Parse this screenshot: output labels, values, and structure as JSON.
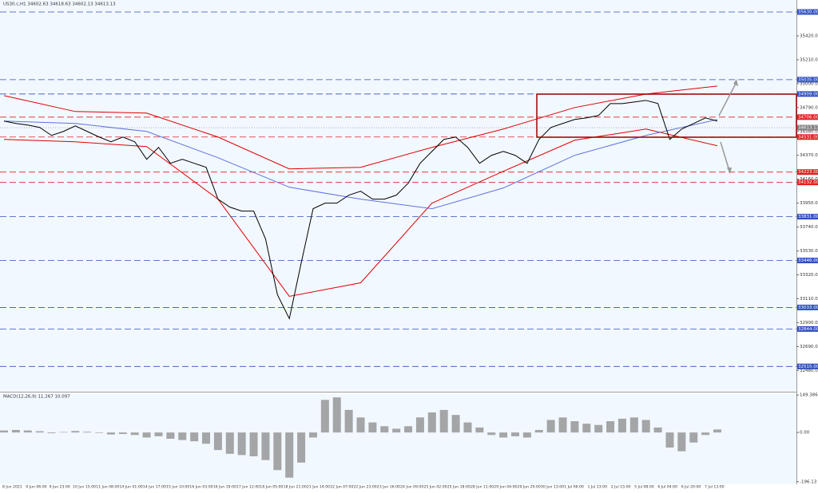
{
  "chart_data": {
    "type": "line",
    "title": "US30.c,H1  34602.63 34618.63 34602.13 34613.13",
    "subtitle": "MACD(12,26,9) 11.267 10.097",
    "time_labels": [
      "8 Jun 2021",
      "9 Jun 06:00",
      "9 Jun 23:00",
      "10 Jun 15:00",
      "11 Jun 08:00",
      "14 Jun 01:00",
      "14 Jun 17:00",
      "15 Jun 10:00",
      "16 Jun 03:00",
      "16 Jun 19:00",
      "17 Jun 12:00",
      "18 Jun 05:00",
      "18 Jun 21:00",
      "21 Jun 14:00",
      "22 Jun 07:00",
      "22 Jun 23:00",
      "23 Jun 16:00",
      "24 Jun 09:00",
      "25 Jun 02:00",
      "25 Jun 18:00",
      "28 Jun 11:00",
      "29 Jun 04:00",
      "29 Jun 20:00",
      "30 Jun 13:00",
      "1 Jul 06:00",
      "1 Jul 23:00",
      "2 Jul 15:00",
      "5 Jul 08:00",
      "6 Jul 04:00",
      "6 Jul 20:00",
      "7 Jul 13:00"
    ],
    "ylim": [
      32300,
      35700
    ],
    "yticks": [
      {
        "value": 35420,
        "label": "35420.00"
      },
      {
        "value": 35210,
        "label": "35210.00"
      },
      {
        "value": 35000,
        "label": "35000.00"
      },
      {
        "value": 34790,
        "label": "34790.00"
      },
      {
        "value": 34580,
        "label": "34580.00"
      },
      {
        "value": 34370,
        "label": "34370.00"
      },
      {
        "value": 34160,
        "label": "34160.00"
      },
      {
        "value": 33950,
        "label": "33950.00"
      },
      {
        "value": 33740,
        "label": "33740.00"
      },
      {
        "value": 33530,
        "label": "33530.00"
      },
      {
        "value": 33320,
        "label": "33320.00"
      },
      {
        "value": 33110,
        "label": "33110.00"
      },
      {
        "value": 32900,
        "label": "32900.00"
      },
      {
        "value": 32690,
        "label": "32690.00"
      },
      {
        "value": 32480,
        "label": "32480.00"
      }
    ],
    "series": [
      {
        "color": "#000000",
        "values": [
          34671,
          34650,
          34636,
          34615,
          34545,
          34580,
          34629,
          34580,
          34531,
          34489,
          34531,
          34489,
          34335,
          34440,
          34300,
          34335,
          34300,
          34265,
          33985,
          33915,
          33880,
          33880,
          33635,
          33145,
          32935,
          33425,
          33901,
          33950,
          33950,
          34020,
          34055,
          33985,
          33985,
          34020,
          34125,
          34300,
          34405,
          34510,
          34531,
          34440,
          34300,
          34370,
          34405,
          34370,
          34300,
          34510,
          34615,
          34650,
          34685,
          34699,
          34720,
          34825,
          34825,
          34839,
          34853,
          34825,
          34510,
          34601,
          34650,
          34699,
          34671
        ]
      }
    ],
    "overlays": [
      {
        "color": "#e00000",
        "x": [
          0,
          6,
          12,
          18,
          24,
          30,
          36,
          42,
          48,
          54,
          60
        ],
        "values": [
          34895,
          34755,
          34741,
          34531,
          34251,
          34265,
          34440,
          34601,
          34790,
          34909,
          34979
        ]
      },
      {
        "color": "#e00000",
        "x": [
          0,
          6,
          12,
          18,
          24,
          30,
          36,
          42,
          48,
          54,
          60
        ],
        "values": [
          34510,
          34489,
          34447,
          33985,
          33131,
          33250,
          33950,
          34230,
          34503,
          34601,
          34454
        ]
      },
      {
        "color": "#6070e0",
        "x": [
          0,
          6,
          12,
          18,
          24,
          30,
          36,
          42,
          48,
          54,
          60
        ],
        "values": [
          34671,
          34650,
          34580,
          34349,
          34090,
          33985,
          33901,
          34083,
          34370,
          34545,
          34685
        ]
      }
    ],
    "levels": [
      {
        "value": 35630,
        "label": "35630.00",
        "color": "#3050c0"
      },
      {
        "value": 35035,
        "label": "35035.00",
        "color": "#3050c0"
      },
      {
        "value": 34909,
        "label": "34909.00",
        "color": "#3050c0"
      },
      {
        "value": 34706,
        "label": "34706.00",
        "color": "#e02020"
      },
      {
        "value": 34531,
        "label": "34531.00",
        "color": "#e02020"
      },
      {
        "value": 34223,
        "label": "34223.00",
        "color": "#e02020"
      },
      {
        "value": 34132,
        "label": "34132.00",
        "color": "#e02020"
      },
      {
        "value": 33831,
        "label": "33831.00",
        "color": "#3050c0"
      },
      {
        "value": 33446,
        "label": "33446.00",
        "color": "#3050c0"
      },
      {
        "value": 33033,
        "label": "33033.00",
        "color": "#3050c0"
      },
      {
        "value": 32844,
        "label": "32844.00",
        "color": "#3050c0"
      },
      {
        "value": 32515,
        "label": "32515.00",
        "color": "#3050c0"
      }
    ],
    "current_price": {
      "value": 34613.13,
      "label": "34613.13",
      "color": "#808080"
    },
    "macd": {
      "color": "#909090",
      "ylim": [
        -200,
        150
      ],
      "yticks": [
        {
          "value": 149.386,
          "label": "149.386"
        },
        {
          "value": 0,
          "label": "0.00"
        },
        {
          "value": -196.13,
          "label": "-196.13"
        }
      ],
      "values": [
        8,
        10,
        8,
        5,
        -3,
        2,
        6,
        3,
        -2,
        -8,
        -6,
        -10,
        -20,
        -15,
        -25,
        -30,
        -35,
        -45,
        -70,
        -85,
        -90,
        -95,
        -110,
        -150,
        -180,
        -120,
        -20,
        130,
        140,
        90,
        60,
        40,
        25,
        15,
        25,
        60,
        80,
        90,
        70,
        40,
        20,
        -10,
        -20,
        -15,
        -20,
        10,
        50,
        60,
        45,
        35,
        30,
        45,
        55,
        60,
        50,
        20,
        -60,
        -75,
        -40,
        -10,
        12
      ]
    }
  }
}
